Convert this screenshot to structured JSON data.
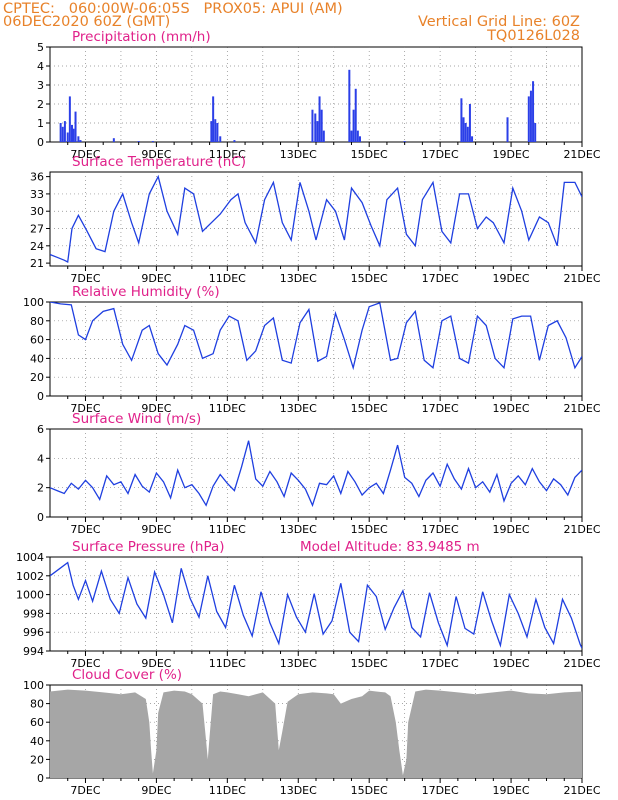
{
  "header": {
    "line1": "CPTEC:   060:00W-06:05S   PROX05: APUI (AM)",
    "line2": "06DEC2020 60Z (GMT)",
    "right1": "Vertical Grid Line: 60Z",
    "right2": "TQ0126L028"
  },
  "colors": {
    "line": "#1f3fe0",
    "bar": "#2b3fe8",
    "cloud": "#a6a6a6",
    "title": "#e0218a",
    "header": "#e8822a"
  },
  "x_tick_labels": [
    "7DEC",
    "9DEC",
    "11DEC",
    "13DEC",
    "15DEC",
    "17DEC",
    "19DEC",
    "21DEC"
  ],
  "chart_data": [
    {
      "type": "bar",
      "title": "Precipitation (mm/h)",
      "ylim": [
        0,
        5
      ],
      "yticks": [
        "0",
        "1",
        "2",
        "3",
        "4",
        "5"
      ],
      "x_days": [
        6.3,
        6.36,
        6.42,
        6.5,
        6.56,
        6.62,
        6.66,
        6.72,
        6.8,
        6.86,
        7.8,
        8.5,
        8.9,
        10.55,
        10.6,
        10.66,
        10.72,
        10.8,
        11.2,
        13.4,
        13.48,
        13.54,
        13.6,
        13.66,
        13.72,
        14.44,
        14.5,
        14.56,
        14.62,
        14.68,
        14.74,
        16.0,
        17.6,
        17.66,
        17.72,
        17.78,
        17.84,
        17.9,
        18.9,
        19.5,
        19.56,
        19.62,
        19.68
      ],
      "values": [
        1.0,
        0.8,
        1.1,
        0.5,
        2.4,
        0.9,
        0.7,
        1.6,
        0.3,
        0.1,
        0.2,
        0.05,
        0.05,
        1.1,
        2.4,
        1.2,
        1.0,
        0.3,
        0.1,
        1.7,
        1.5,
        1.1,
        2.4,
        1.7,
        0.6,
        3.8,
        0.6,
        1.7,
        2.8,
        0.6,
        0.3,
        0.05,
        2.3,
        1.3,
        1.0,
        0.8,
        2.0,
        0.3,
        1.3,
        2.4,
        2.7,
        3.2,
        1.0
      ]
    },
    {
      "type": "line",
      "title": "Surface Temperature (nC)",
      "ylim": [
        20.5,
        36.8
      ],
      "yticks": [
        "21",
        "24",
        "27",
        "30",
        "33",
        "36"
      ],
      "x_days": [
        6.0,
        6.2,
        6.4,
        6.5,
        6.62,
        6.8,
        7.05,
        7.3,
        7.55,
        7.8,
        8.05,
        8.3,
        8.5,
        8.8,
        9.05,
        9.3,
        9.6,
        9.8,
        10.05,
        10.3,
        10.55,
        10.8,
        11.1,
        11.3,
        11.5,
        11.8,
        12.05,
        12.3,
        12.55,
        12.8,
        13.05,
        13.3,
        13.5,
        13.8,
        14.05,
        14.3,
        14.5,
        14.8,
        15.05,
        15.3,
        15.5,
        15.8,
        16.05,
        16.3,
        16.5,
        16.8,
        17.05,
        17.3,
        17.55,
        17.8,
        18.05,
        18.3,
        18.5,
        18.8,
        19.05,
        19.3,
        19.5,
        19.8,
        20.05,
        20.3,
        20.5,
        20.8,
        21.0
      ],
      "values": [
        22.5,
        22.0,
        21.5,
        21.2,
        27.0,
        29.3,
        26.5,
        23.5,
        23.0,
        30.0,
        33.0,
        28.0,
        24.5,
        33.0,
        36.0,
        30.0,
        26.0,
        34.0,
        33.0,
        26.5,
        28.0,
        29.5,
        32.0,
        33.0,
        28.0,
        24.5,
        32.0,
        35.0,
        28.0,
        25.0,
        35.0,
        30.0,
        25.0,
        32.0,
        30.0,
        25.0,
        34.0,
        31.5,
        27.5,
        24.0,
        32.0,
        34.0,
        26.0,
        24.0,
        32.0,
        35.0,
        26.5,
        24.5,
        33.0,
        33.0,
        27.0,
        29.0,
        28.0,
        24.5,
        34.0,
        30.0,
        25.0,
        29.0,
        28.0,
        24.0,
        35.0,
        35.0,
        32.5
      ]
    },
    {
      "type": "line",
      "title": "Relative Humidity (%)",
      "ylim": [
        0,
        100
      ],
      "yticks": [
        "0",
        "20",
        "40",
        "60",
        "80",
        "100"
      ],
      "x_days": [
        6.0,
        6.3,
        6.6,
        6.8,
        7.0,
        7.2,
        7.5,
        7.8,
        8.05,
        8.3,
        8.6,
        8.8,
        9.05,
        9.3,
        9.6,
        9.8,
        10.05,
        10.3,
        10.6,
        10.8,
        11.05,
        11.3,
        11.55,
        11.8,
        12.05,
        12.3,
        12.55,
        12.8,
        13.05,
        13.3,
        13.55,
        13.8,
        14.05,
        14.3,
        14.55,
        14.8,
        15.0,
        15.3,
        15.6,
        15.8,
        16.05,
        16.3,
        16.55,
        16.8,
        17.05,
        17.3,
        17.55,
        17.8,
        18.05,
        18.3,
        18.55,
        18.8,
        19.05,
        19.3,
        19.55,
        19.8,
        20.05,
        20.3,
        20.55,
        20.8,
        21.0
      ],
      "values": [
        100,
        98,
        97,
        65,
        60,
        80,
        90,
        93,
        55,
        38,
        70,
        75,
        45,
        33,
        55,
        75,
        70,
        40,
        45,
        70,
        85,
        80,
        38,
        48,
        75,
        83,
        38,
        35,
        78,
        92,
        37,
        42,
        88,
        60,
        30,
        70,
        95,
        99,
        38,
        40,
        78,
        90,
        38,
        30,
        80,
        85,
        40,
        35,
        85,
        75,
        40,
        30,
        82,
        85,
        85,
        38,
        75,
        80,
        62,
        30,
        42
      ]
    },
    {
      "type": "line",
      "title": "Surface Wind (m/s)",
      "ylim": [
        0,
        6
      ],
      "yticks": [
        "0",
        "2",
        "4",
        "6"
      ],
      "x_days": [
        6.0,
        6.2,
        6.4,
        6.6,
        6.8,
        7.0,
        7.2,
        7.4,
        7.6,
        7.8,
        8.0,
        8.2,
        8.4,
        8.6,
        8.8,
        9.0,
        9.2,
        9.4,
        9.6,
        9.8,
        10.0,
        10.2,
        10.4,
        10.6,
        10.8,
        11.0,
        11.2,
        11.4,
        11.6,
        11.8,
        12.0,
        12.2,
        12.4,
        12.6,
        12.8,
        13.0,
        13.2,
        13.4,
        13.6,
        13.8,
        14.0,
        14.2,
        14.4,
        14.6,
        14.8,
        15.0,
        15.2,
        15.4,
        15.6,
        15.8,
        16.0,
        16.2,
        16.4,
        16.6,
        16.8,
        17.0,
        17.2,
        17.4,
        17.6,
        17.8,
        18.0,
        18.2,
        18.4,
        18.6,
        18.8,
        19.0,
        19.2,
        19.4,
        19.6,
        19.8,
        20.0,
        20.2,
        20.4,
        20.6,
        20.8,
        21.0
      ],
      "values": [
        2.0,
        1.8,
        1.6,
        2.3,
        1.9,
        2.5,
        2.0,
        1.2,
        2.8,
        2.2,
        2.4,
        1.6,
        2.9,
        2.1,
        1.7,
        3.0,
        2.4,
        1.3,
        3.2,
        2.0,
        2.2,
        1.6,
        0.8,
        2.1,
        2.9,
        2.3,
        1.8,
        3.4,
        5.2,
        2.6,
        2.1,
        3.1,
        2.4,
        1.4,
        3.0,
        2.5,
        1.9,
        0.8,
        2.3,
        2.2,
        2.8,
        1.6,
        3.1,
        2.4,
        1.5,
        2.0,
        2.3,
        1.6,
        3.2,
        4.9,
        2.7,
        2.3,
        1.4,
        2.5,
        3.0,
        2.1,
        3.6,
        2.6,
        1.9,
        3.3,
        2.0,
        2.4,
        1.7,
        2.9,
        1.1,
        2.3,
        2.8,
        2.2,
        3.3,
        2.4,
        1.8,
        2.6,
        2.2,
        1.5,
        2.7,
        3.2
      ]
    },
    {
      "type": "line",
      "title": "Surface Pressure (hPa)",
      "annotation": "Model Altitude: 83.9485 m",
      "ylim": [
        994,
        1004
      ],
      "yticks": [
        "994",
        "996",
        "998",
        "1000",
        "1002",
        "1004"
      ],
      "x_days": [
        6.0,
        6.25,
        6.5,
        6.65,
        6.8,
        7.0,
        7.2,
        7.45,
        7.7,
        7.95,
        8.2,
        8.45,
        8.7,
        8.95,
        9.2,
        9.45,
        9.7,
        9.95,
        10.2,
        10.45,
        10.7,
        10.95,
        11.2,
        11.45,
        11.7,
        11.95,
        12.2,
        12.45,
        12.7,
        12.95,
        13.2,
        13.45,
        13.7,
        13.95,
        14.2,
        14.45,
        14.7,
        14.95,
        15.2,
        15.45,
        15.7,
        15.95,
        16.2,
        16.45,
        16.7,
        16.95,
        17.2,
        17.45,
        17.7,
        17.95,
        18.2,
        18.45,
        18.7,
        18.95,
        19.2,
        19.45,
        19.7,
        19.95,
        20.2,
        20.45,
        20.7,
        20.95,
        21.0
      ],
      "values": [
        1002.0,
        1002.7,
        1003.4,
        1001.0,
        999.5,
        1001.5,
        999.3,
        1002.5,
        999.5,
        998.0,
        1001.8,
        999.0,
        997.5,
        1002.4,
        1000.0,
        997.0,
        1002.8,
        999.6,
        997.6,
        1002.0,
        998.2,
        996.5,
        1001.0,
        997.8,
        995.6,
        1000.3,
        997.0,
        994.8,
        1000.0,
        997.6,
        996.0,
        1000.1,
        995.8,
        997.2,
        1001.2,
        996.0,
        995.0,
        1001.0,
        999.8,
        996.3,
        998.6,
        1000.4,
        996.5,
        995.5,
        1000.2,
        997.0,
        994.6,
        999.8,
        996.4,
        995.8,
        1000.3,
        997.2,
        994.6,
        1000.0,
        998.0,
        995.5,
        999.5,
        996.5,
        994.8,
        999.5,
        997.5,
        994.7,
        994.3
      ]
    },
    {
      "type": "area",
      "title": "Cloud Cover (%)",
      "ylim": [
        0,
        100
      ],
      "yticks": [
        "0",
        "20",
        "40",
        "60",
        "80",
        "100"
      ],
      "x_days": [
        6.0,
        6.5,
        7.0,
        7.5,
        8.0,
        8.4,
        8.7,
        8.8,
        8.85,
        8.9,
        9.0,
        9.05,
        9.2,
        9.5,
        9.8,
        10.0,
        10.3,
        10.4,
        10.45,
        10.5,
        10.6,
        10.8,
        11.0,
        11.3,
        11.6,
        12.0,
        12.35,
        12.45,
        12.55,
        12.7,
        13.0,
        13.4,
        13.8,
        14.0,
        14.2,
        14.5,
        14.8,
        15.0,
        15.2,
        15.45,
        15.6,
        15.75,
        15.85,
        15.95,
        16.05,
        16.1,
        16.3,
        16.6,
        17.0,
        17.5,
        18.0,
        18.5,
        19.0,
        19.5,
        20.0,
        20.5,
        21.0
      ],
      "values": [
        93,
        95,
        94,
        92,
        90,
        92,
        85,
        60,
        30,
        5,
        30,
        70,
        92,
        94,
        93,
        90,
        80,
        40,
        20,
        45,
        90,
        93,
        92,
        90,
        88,
        92,
        80,
        30,
        50,
        82,
        90,
        92,
        91,
        90,
        80,
        85,
        88,
        94,
        93,
        92,
        88,
        60,
        30,
        3,
        20,
        60,
        93,
        95,
        94,
        92,
        90,
        92,
        94,
        91,
        90,
        92,
        93
      ]
    }
  ]
}
